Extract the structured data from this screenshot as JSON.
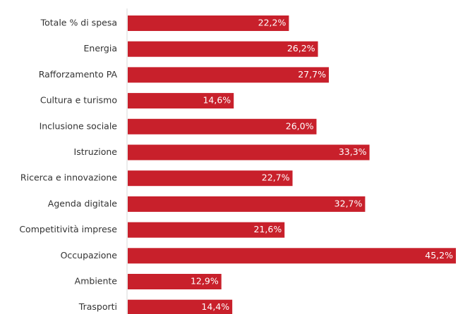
{
  "chart_data": {
    "type": "hbar",
    "categories": [
      "Totale % di spesa",
      "Energia",
      "Rafforzamento PA",
      "Cultura e turismo",
      "Inclusione sociale",
      "Istruzione",
      "Ricerca e innovazione",
      "Agenda digitale",
      "Competitività imprese",
      "Occupazione",
      "Ambiente",
      "Trasporti"
    ],
    "values": [
      22.2,
      26.2,
      27.7,
      14.6,
      26.0,
      33.3,
      22.7,
      32.7,
      21.6,
      45.2,
      12.9,
      14.4
    ],
    "value_labels": [
      "22,2%",
      "26,2%",
      "27,7%",
      "14,6%",
      "26,0%",
      "33,3%",
      "22,7%",
      "32,7%",
      "21,6%",
      "45,2%",
      "12,9%",
      "14,4%"
    ],
    "color": "#c8202b"
  }
}
